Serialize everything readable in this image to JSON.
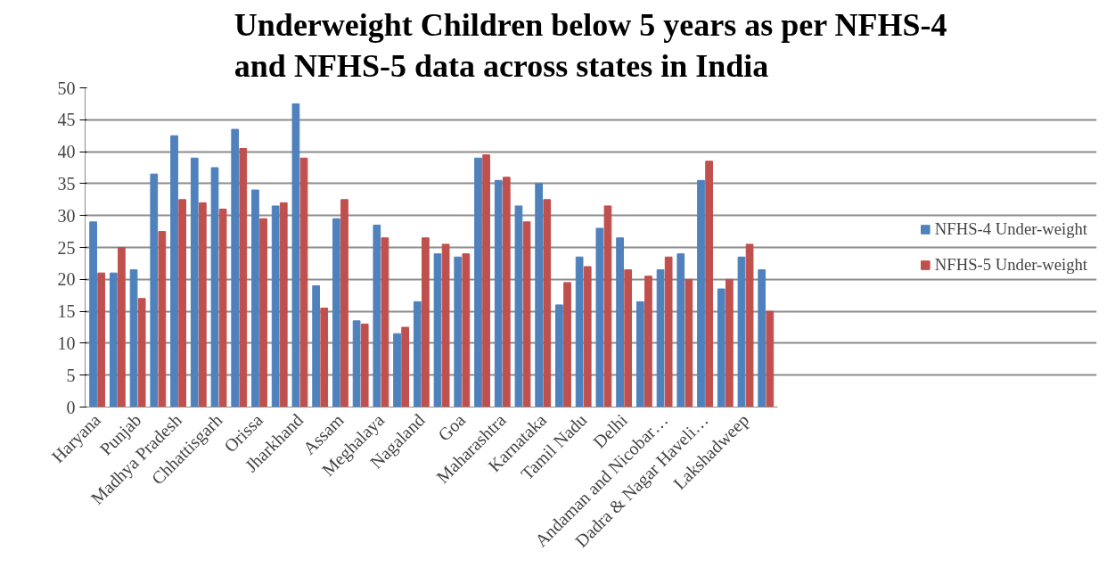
{
  "chart_data": {
    "type": "bar",
    "title": "Underweight Children below 5 years as per NFHS-4 and NFHS-5 data across states in India",
    "categories": [
      "Haryana",
      null,
      "Punjab",
      null,
      "Madhya Pradesh",
      null,
      "Chhattisgarh",
      null,
      "Orissa",
      null,
      "Jharkhand",
      null,
      "Assam",
      null,
      "Meghalaya",
      null,
      "Nagaland",
      null,
      "Goa",
      null,
      "Maharashtra",
      null,
      "Karnataka",
      null,
      "Tamil Nadu",
      null,
      "Delhi",
      null,
      "Andaman and Nicobar…",
      null,
      "Dadra & Nagar Haveli…",
      null,
      "Lakshadweep",
      null
    ],
    "series": [
      {
        "name": "NFHS-4 Under-weight",
        "color": "#4f81bd",
        "values": [
          29,
          21,
          21.5,
          36.5,
          42.5,
          39,
          37.5,
          43.5,
          34,
          31.5,
          47.5,
          19,
          29.5,
          13.5,
          28.5,
          11.5,
          16.5,
          24,
          23.5,
          39,
          35.5,
          31.5,
          35,
          16,
          23.5,
          28,
          26.5,
          16.5,
          21.5,
          24,
          35.5,
          18.5,
          23.5,
          21.5
        ]
      },
      {
        "name": "NFHS-5 Under-weight",
        "color": "#c0504d",
        "values": [
          21,
          25,
          17,
          27.5,
          32.5,
          32,
          31,
          40.5,
          29.5,
          32,
          39,
          15.5,
          32.5,
          13,
          26.5,
          12.5,
          26.5,
          25.5,
          24,
          39.5,
          36,
          29,
          32.5,
          19.5,
          22,
          31.5,
          21.5,
          20.5,
          23.5,
          20,
          38.5,
          20,
          25.5,
          15
        ]
      }
    ],
    "ylim": [
      0,
      50
    ],
    "yticks": [
      0,
      5,
      10,
      15,
      20,
      25,
      30,
      35,
      40,
      45,
      50
    ],
    "grid": "y",
    "legend": "right"
  }
}
